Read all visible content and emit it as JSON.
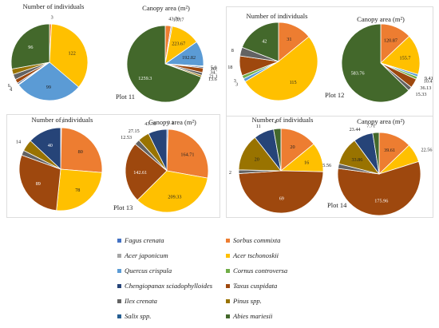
{
  "species": [
    {
      "key": "fagus",
      "name": "Fagus crenata",
      "color": "#4472c4"
    },
    {
      "key": "sorbus",
      "name": "Sorbus commixta",
      "color": "#ed7d31"
    },
    {
      "key": "acerj",
      "name": "Acer japonicum",
      "color": "#a5a5a5"
    },
    {
      "key": "acert",
      "name": "Acer tschonoskii",
      "color": "#ffc000"
    },
    {
      "key": "quercus",
      "name": "Quercus crispula",
      "color": "#5b9bd5"
    },
    {
      "key": "cornus",
      "name": "Cornus controversa",
      "color": "#70ad47"
    },
    {
      "key": "cheng",
      "name": "Chengiopanax sciadophylloides",
      "color": "#264478"
    },
    {
      "key": "taxus",
      "name": "Taxus cuspidata",
      "color": "#9e480e"
    },
    {
      "key": "ilex",
      "name": "Ilex crenata",
      "color": "#636363"
    },
    {
      "key": "pinus",
      "name": "Pinus spp.",
      "color": "#997300"
    },
    {
      "key": "salix",
      "name": "Salix spp.",
      "color": "#255e91"
    },
    {
      "key": "abies",
      "name": "Abies mariesii",
      "color": "#43682b"
    }
  ],
  "chart_data": [
    {
      "type": "pie",
      "plot": "Plot 11",
      "title": "Number of individuals",
      "slices": [
        {
          "species": "sorbus",
          "value": 3,
          "label": "3"
        },
        {
          "species": "acert",
          "value": 122,
          "label": "122"
        },
        {
          "species": "quercus",
          "value": 99,
          "label": "99"
        },
        {
          "species": "cornus",
          "value": 1,
          "label": "1"
        },
        {
          "species": "cheng",
          "value": 2,
          "label": "2"
        },
        {
          "species": "taxus",
          "value": 6,
          "label": "6"
        },
        {
          "species": "ilex",
          "value": 8,
          "label": "8"
        },
        {
          "species": "pinus",
          "value": 8,
          "label": "8"
        },
        {
          "species": "abies",
          "value": 96,
          "label": "96"
        }
      ]
    },
    {
      "type": "pie",
      "plot": "Plot 11",
      "title": "Canopy area (m²)",
      "slices": [
        {
          "species": "sorbus",
          "value": 43.79,
          "label": "43.79"
        },
        {
          "species": "acerj",
          "value": 10.17,
          "label": "10.17"
        },
        {
          "species": "acert",
          "value": 223.67,
          "label": "223.67"
        },
        {
          "species": "quercus",
          "value": 192.82,
          "label": "192.82"
        },
        {
          "species": "cornus",
          "value": 5.92,
          "label": "5.92"
        },
        {
          "species": "cheng",
          "value": 10.08,
          "label": "10.08"
        },
        {
          "species": "taxus",
          "value": 34.77,
          "label": "34.77"
        },
        {
          "species": "ilex",
          "value": 21.17,
          "label": "21.17"
        },
        {
          "species": "pinus",
          "value": 13.63,
          "label": "13.63"
        },
        {
          "species": "abies",
          "value": 1259.3,
          "label": "1259.3"
        }
      ]
    },
    {
      "type": "pie",
      "plot": "Plot 12",
      "title": "Number of individuals",
      "slices": [
        {
          "species": "sorbus",
          "value": 31,
          "label": "31"
        },
        {
          "species": "acert",
          "value": 115,
          "label": "115"
        },
        {
          "species": "quercus",
          "value": 3,
          "label": "3"
        },
        {
          "species": "cornus",
          "value": 3,
          "label": "3"
        },
        {
          "species": "taxus",
          "value": 18,
          "label": "18"
        },
        {
          "species": "ilex",
          "value": 8,
          "label": "8"
        },
        {
          "species": "abies",
          "value": 42,
          "label": "42"
        }
      ]
    },
    {
      "type": "pie",
      "plot": "Plot 12",
      "title": "Canopy area (m²)",
      "slices": [
        {
          "species": "sorbus",
          "value": 120.87,
          "label": "120.87"
        },
        {
          "species": "acert",
          "value": 155.7,
          "label": "155.7"
        },
        {
          "species": "quercus",
          "value": 9.41,
          "label": "9.41"
        },
        {
          "species": "cornus",
          "value": 10.41,
          "label": "10.41"
        },
        {
          "species": "taxus",
          "value": 36.13,
          "label": "36.13"
        },
        {
          "species": "ilex",
          "value": 15.33,
          "label": "15.33"
        },
        {
          "species": "abies",
          "value": 583.76,
          "label": "583.76"
        }
      ]
    },
    {
      "type": "pie",
      "plot": "Plot 13",
      "title": "Number of individuals",
      "slices": [
        {
          "species": "fagus",
          "value": 1,
          "label": "1"
        },
        {
          "species": "sorbus",
          "value": 80,
          "label": "80"
        },
        {
          "species": "acert",
          "value": 78,
          "label": "78"
        },
        {
          "species": "taxus",
          "value": 89,
          "label": "89"
        },
        {
          "species": "ilex",
          "value": 6,
          "label": ""
        },
        {
          "species": "pinus",
          "value": 14,
          "label": "14"
        },
        {
          "species": "cheng",
          "value": 40,
          "label": "40"
        }
      ]
    },
    {
      "type": "pie",
      "plot": "Plot 13",
      "title": "Canopy area (m²)",
      "slices": [
        {
          "species": "fagus",
          "value": 3.1,
          "label": "3.1"
        },
        {
          "species": "sorbus",
          "value": 164.71,
          "label": "164.71"
        },
        {
          "species": "acert",
          "value": 209.33,
          "label": "209.33"
        },
        {
          "species": "taxus",
          "value": 142.61,
          "label": "142.61"
        },
        {
          "species": "ilex",
          "value": 12.53,
          "label": "12.53"
        },
        {
          "species": "pinus",
          "value": 27.15,
          "label": "27.15"
        },
        {
          "species": "cheng",
          "value": 43.78,
          "label": "43.78"
        }
      ]
    },
    {
      "type": "pie",
      "plot": "Plot 14",
      "title": "Number of individuals",
      "slices": [
        {
          "species": "sorbus",
          "value": 20,
          "label": "20"
        },
        {
          "species": "acert",
          "value": 16,
          "label": "16"
        },
        {
          "species": "taxus",
          "value": 69,
          "label": "69"
        },
        {
          "species": "ilex",
          "value": 2,
          "label": "2"
        },
        {
          "species": "pinus",
          "value": 20,
          "label": "20"
        },
        {
          "species": "cheng",
          "value": 11,
          "label": "11"
        },
        {
          "species": "abies",
          "value": 4,
          "label": "4"
        }
      ]
    },
    {
      "type": "pie",
      "plot": "Plot 14",
      "title": "Canopy area (m²)",
      "slices": [
        {
          "species": "sorbus",
          "value": 39.61,
          "label": "39.61"
        },
        {
          "species": "acert",
          "value": 22.56,
          "label": "22.56"
        },
        {
          "species": "taxus",
          "value": 175.96,
          "label": "175.96"
        },
        {
          "species": "ilex",
          "value": 5.56,
          "label": "5.56"
        },
        {
          "species": "pinus",
          "value": 33.86,
          "label": "33.86"
        },
        {
          "species": "cheng",
          "value": 23.44,
          "label": "23.44"
        },
        {
          "species": "abies",
          "value": 7.71,
          "label": "7.71"
        }
      ]
    }
  ]
}
